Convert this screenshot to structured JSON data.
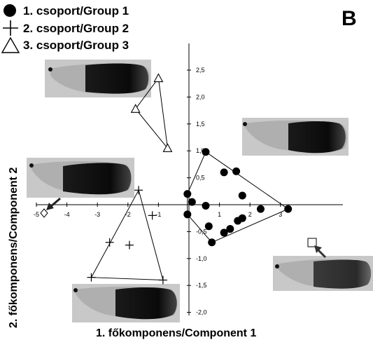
{
  "panel_label": "B",
  "legend": [
    {
      "marker": "filled-circle",
      "label": "1. csoport/Group 1"
    },
    {
      "marker": "plus",
      "label": "2. csoport/Group 2"
    },
    {
      "marker": "open-triangle",
      "label": "3. csoport/Group 3"
    }
  ],
  "chart_data": {
    "type": "scatter",
    "xlabel": "1. főkomponens/Component 1",
    "ylabel": "2. főkomponens/Component 2",
    "xlim": [
      -5,
      3
    ],
    "ylim": [
      -2.0,
      2.5
    ],
    "x_ticks": [
      -5,
      -4,
      -3,
      -2,
      -1,
      1,
      2,
      3
    ],
    "x_tick_labels": [
      "-5",
      "-4",
      "-3",
      "-2",
      "-1",
      "1",
      "2",
      "3"
    ],
    "y_ticks": [
      2.5,
      2.0,
      1.5,
      1.0,
      0.5,
      -0.5,
      -1.0,
      -1.5,
      -2.0
    ],
    "y_tick_labels": [
      "2,5",
      "2,0",
      "1,5",
      "1,0",
      "0,5",
      "-0,5",
      "-1,0",
      "-1,5",
      "-2,0"
    ],
    "grid": false,
    "series": [
      {
        "name": "1. csoport/Group 1",
        "marker": "filled-circle",
        "points": [
          [
            -0.05,
            0.2
          ],
          [
            0.1,
            0.05
          ],
          [
            0.55,
            0.98
          ],
          [
            -0.05,
            -0.18
          ],
          [
            0.55,
            -0.02
          ],
          [
            0.65,
            -0.4
          ],
          [
            0.75,
            -0.7
          ],
          [
            1.15,
            0.6
          ],
          [
            1.55,
            0.62
          ],
          [
            1.75,
            0.17
          ],
          [
            1.15,
            -0.52
          ],
          [
            1.35,
            -0.45
          ],
          [
            1.6,
            -0.3
          ],
          [
            1.75,
            -0.25
          ],
          [
            2.35,
            -0.08
          ],
          [
            3.25,
            -0.08
          ]
        ],
        "hull": [
          [
            0.55,
            0.98
          ],
          [
            3.25,
            -0.08
          ],
          [
            0.75,
            -0.7
          ],
          [
            -0.05,
            -0.18
          ],
          [
            -0.05,
            0.2
          ]
        ]
      },
      {
        "name": "2. csoport/Group 2",
        "marker": "plus",
        "points": [
          [
            -1.65,
            0.27
          ],
          [
            -1.2,
            -0.2
          ],
          [
            -2.6,
            -0.7
          ],
          [
            -1.95,
            -0.75
          ],
          [
            -3.2,
            -1.35
          ],
          [
            -0.85,
            -1.4
          ]
        ],
        "hull": [
          [
            -1.65,
            0.27
          ],
          [
            -0.85,
            -1.4
          ],
          [
            -3.2,
            -1.35
          ]
        ]
      },
      {
        "name": "3. csoport/Group 3",
        "marker": "open-triangle",
        "points": [
          [
            -1.0,
            2.35
          ],
          [
            -1.75,
            1.78
          ],
          [
            -0.7,
            1.05
          ]
        ],
        "hull": [
          [
            -1.0,
            2.35
          ],
          [
            -0.7,
            1.05
          ],
          [
            -1.75,
            1.78
          ]
        ]
      }
    ],
    "annotations": [
      {
        "type": "diamond-marker-with-arrow",
        "x": -4.9,
        "y": -0.1
      },
      {
        "type": "square-marker-with-arrow",
        "x": 3.3,
        "y": -0.75
      }
    ]
  },
  "wing_images": [
    {
      "name": "wing-photo-group3",
      "anchor": "top-left"
    },
    {
      "name": "wing-photo-group1",
      "anchor": "upper-right"
    },
    {
      "name": "wing-photo-left-extreme",
      "anchor": "middle-left"
    },
    {
      "name": "wing-photo-right-extreme",
      "anchor": "lower-right"
    },
    {
      "name": "wing-photo-group2",
      "anchor": "bottom-left"
    }
  ]
}
